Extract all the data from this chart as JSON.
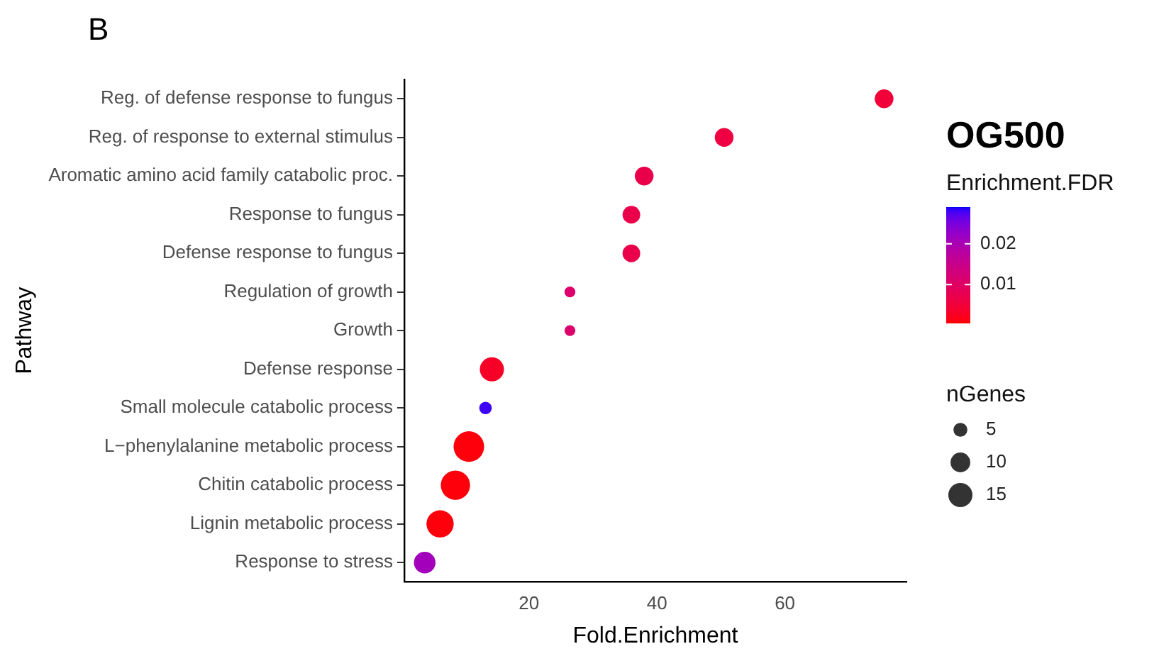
{
  "chart_data": {
    "type": "bubble",
    "title": "OG500",
    "xlabel": "Fold.Enrichment",
    "ylabel": "Pathway",
    "clabel": "Enrichment.FDR",
    "legend_title": "nGenes",
    "annotations": [
      "B"
    ],
    "categories": [
      "Reg. of defense response to fungus",
      "Reg. of response to external stimulus",
      "Aromatic amino acid family catabolic proc.",
      "Response to fungus",
      "Defense response to fungus",
      "Regulation of growth",
      "Growth",
      "Defense response",
      "Small molecule catabolic process",
      "L−phenylalanine metabolic process",
      "Chitin catabolic process",
      "Lignin metabolic process",
      "Response to stress"
    ],
    "values": [
      75.5,
      50.5,
      38,
      36,
      36,
      26.4,
      26.4,
      14.2,
      13.2,
      10.6,
      8.5,
      6.1,
      3.7
    ],
    "sizes": [
      9,
      9,
      9,
      8,
      8,
      3,
      3,
      15,
      4,
      24,
      22,
      19,
      12
    ],
    "size_legend": [
      5,
      10,
      15
    ],
    "cvalues": [
      0.005,
      0.006,
      0.007,
      0.007,
      0.007,
      0.011,
      0.011,
      0.003,
      0.028,
      0.001,
      0.001,
      0.001,
      0.021
    ],
    "clim": [
      0.0005,
      0.029
    ],
    "cticks": [
      0.01,
      0.02
    ],
    "orientation": "horizontal",
    "xlim": [
      0.5,
      79
    ],
    "xticks": [
      20,
      40,
      60
    ],
    "grid": false
  }
}
